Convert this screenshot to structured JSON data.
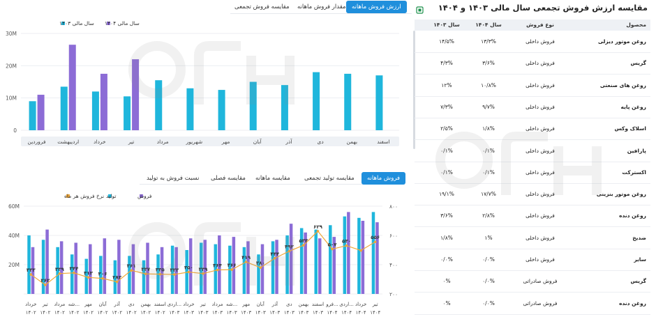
{
  "top_tabs": [
    {
      "label": "ارزش فروش ماهانه",
      "active": true
    },
    {
      "label": "مقدار فروش ماهانه",
      "active": false
    },
    {
      "label": "مقایسه فروش تجمعی",
      "active": false
    }
  ],
  "bottom_tabs": [
    {
      "label": "فروش ماهانه",
      "active": true
    },
    {
      "label": "مقایسه تولید تجمعی",
      "active": false
    },
    {
      "label": "مقایسه ماهانه",
      "active": false
    },
    {
      "label": "مقایسه فصلی",
      "active": false
    },
    {
      "label": "نسبت فروش به تولید",
      "active": false
    }
  ],
  "colors": {
    "cyan": "#1fb6dc",
    "purple": "#8c6cd6",
    "orange": "#f0a838",
    "accent": "#1f8fdc"
  },
  "chart_data": [
    {
      "type": "bar",
      "legend": [
        "سال مالی ۱۴۰۴",
        "سال مالی ۱۴۰۳"
      ],
      "legend_position": "top-left",
      "categories": [
        "فروردین",
        "اردیبهشت",
        "خرداد",
        "تیر",
        "مرداد",
        "شهریور",
        "مهر",
        "آبان",
        "آذر",
        "دی",
        "بهمن",
        "اسفند"
      ],
      "series": [
        {
          "name": "سال مالی ۱۴۰۳",
          "color": "#1fb6dc",
          "values": [
            9,
            13.5,
            12,
            10.5,
            15.5,
            13,
            12.5,
            15,
            14,
            18,
            17.5,
            17
          ]
        },
        {
          "name": "سال مالی ۱۴۰۴",
          "color": "#8c6cd6",
          "values": [
            11,
            26.5,
            17.5,
            22,
            null,
            null,
            null,
            null,
            null,
            null,
            null,
            null
          ]
        }
      ],
      "ylim": [
        0,
        30
      ],
      "y_ticks": [
        "0",
        "10M",
        "20M",
        "30M"
      ],
      "grid": true
    },
    {
      "type": "bar",
      "legend": [
        "فروش",
        "تولید",
        "نرخ فروش هر ماه"
      ],
      "legend_position": "top-right",
      "categories": [
        "خرداد ۱۴۰۲",
        "تیر ۱۴۰۲",
        "مرداد ۱۴۰۲",
        "شه... ۱۴۰۲",
        "مهر ۱۴۰۲",
        "آبان ۱۴۰۲",
        "آذر ۱۴۰۲",
        "دی ۱۴۰۲",
        "بهمن ۱۴۰۲",
        "اسفند ۱۴۰۲",
        "اردی... ۱۴۰۳",
        "خرداد ۱۴۰۳",
        "تیر ۱۴۰۳",
        "مرداد ۱۴۰۳",
        "شه... ۱۴۰۳",
        "مهر ۱۴۰۳",
        "آبان ۱۴۰۳",
        "آذر ۱۴۰۳",
        "دی ۱۴۰۳",
        "بهمن ۱۴۰۳",
        "اسفند ۱۴۰۳",
        "فرو... ۱۴۰۴",
        "اردی... ۱۴۰۴",
        "خرداد ۱۴۰۴",
        "تیر ۱۴۰۴"
      ],
      "series": [
        {
          "name": "تولید",
          "color": "#1fb6dc",
          "values": [
            40,
            37,
            32,
            27,
            24,
            26,
            23,
            26,
            23,
            27,
            33,
            30,
            35,
            34,
            33,
            32,
            27,
            36,
            40,
            45,
            44,
            47,
            53,
            52,
            56
          ]
        },
        {
          "name": "فروش",
          "color": "#8c6cd6",
          "values": [
            32,
            44,
            36,
            35,
            34,
            38,
            37,
            34,
            35,
            32,
            32,
            38,
            37,
            40,
            39,
            36,
            34,
            37,
            48,
            42,
            38,
            39,
            56,
            50,
            49
          ]
        },
        {
          "name": "نرخ فروش هر ماه",
          "color": "#f0a838",
          "values": [
            333,
            262,
            339,
            344,
            313,
            306,
            283,
            361,
            337,
            335,
            333,
            350,
            339,
            364,
            366,
            419,
            380,
            444,
            492,
            533,
            629,
            507,
            530,
            497,
            556
          ]
        }
      ],
      "point_labels": [
        "۳۳۳",
        "۲۶۲",
        "۳۳۹",
        "۳۴۴",
        "۳۱۳",
        "۳۰۶",
        "۲۸۳",
        "۳۶۱",
        "۳۳۷",
        "۳۳۵",
        "۳۳۳",
        "۳۵۰",
        "۳۳۹",
        "۳۶۴",
        "۳۶۶",
        "۴۱۹",
        "۳۸۰",
        "۴۴۴",
        "۴۹۲",
        "۵۳۳",
        "۶۲۹",
        "۵۰۷",
        "۵۳۰",
        "",
        "۵۵۶"
      ],
      "ylim": [
        0,
        60
      ],
      "y_ticks": [
        "",
        "20M",
        "40M",
        "60M"
      ],
      "y2lim": [
        200,
        800
      ],
      "y2_ticks": [
        "۲۰۰",
        "۴۰۰",
        "۶۰۰",
        "۸۰۰"
      ],
      "grid": true
    }
  ],
  "table": {
    "title": "مقایسه ارزش فروش تجمعی سال مالی ۱۴۰۳ و ۱۴۰۴",
    "headers": {
      "product": "محصول",
      "type": "نوع فروش",
      "y1404": "سال ۱۴۰۴",
      "y1403": "سال ۱۴۰۳"
    },
    "rows": [
      {
        "product": "روغن موتور دیزلی",
        "type": "فروش داخلی",
        "y1404": "۱۳/۳%",
        "y1403": "۱۴/۵%"
      },
      {
        "product": "گریس",
        "type": "فروش داخلی",
        "y1404": "۳/۶%",
        "y1403": "۴/۳%"
      },
      {
        "product": "روغن های صنعتی",
        "type": "فروش داخلی",
        "y1404": "۱۰/۸%",
        "y1403": "۱۲%"
      },
      {
        "product": "روغن پایه",
        "type": "فروش داخلی",
        "y1404": "۹/۷%",
        "y1403": "۷/۳%"
      },
      {
        "product": "اسلاک وکس",
        "type": "فروش داخلی",
        "y1404": "۱/۸%",
        "y1403": "۲/۵%"
      },
      {
        "product": "پارافین",
        "type": "فروش داخلی",
        "y1404": "۰/۱%",
        "y1403": "۰/۱%"
      },
      {
        "product": "اکسترکت",
        "type": "فروش داخلی",
        "y1404": "۰/۱%",
        "y1403": "۰/۱%"
      },
      {
        "product": "روغن موتور بنزینی",
        "type": "فروش داخلی",
        "y1404": "۱۷/۷%",
        "y1403": "۱۹/۱%"
      },
      {
        "product": "روغن دنده",
        "type": "فروش داخلی",
        "y1404": "۲/۸%",
        "y1403": "۳/۶%"
      },
      {
        "product": "ضدیخ",
        "type": "فروش داخلی",
        "y1404": "۱%",
        "y1403": "۱/۸%"
      },
      {
        "product": "سایر",
        "type": "فروش داخلی",
        "y1404": "۰/۰%",
        "y1403": "۰/۰%"
      },
      {
        "product": "گریس",
        "type": "فروش صادراتی",
        "y1404": "۰/۰%",
        "y1403": "۰%"
      },
      {
        "product": "روغن دنده",
        "type": "فروش صادراتی",
        "y1404": "۰/۰%",
        "y1403": "۰%"
      }
    ]
  }
}
